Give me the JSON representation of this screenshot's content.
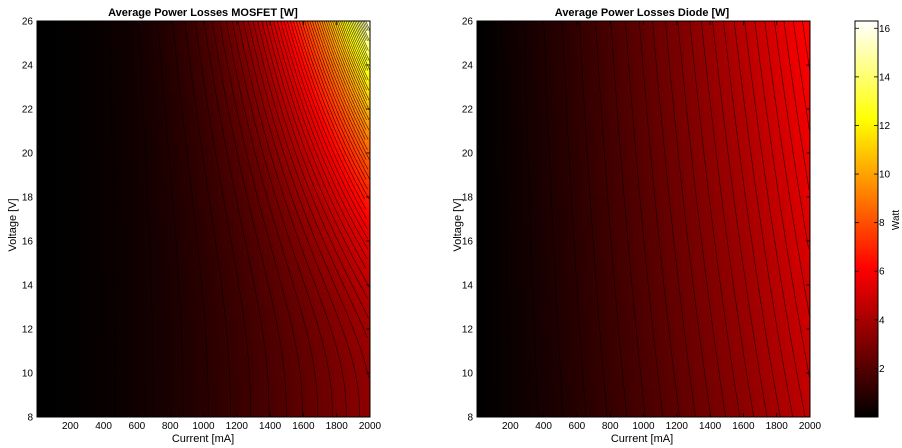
{
  "chart_data": [
    {
      "type": "heatmap",
      "title": "Average Power Losses MOSFET [W]",
      "xlabel": "Current [mA]",
      "ylabel": "Voltage [V]",
      "xlim": [
        0,
        2000
      ],
      "ylim": [
        8,
        26
      ],
      "x_ticks": [
        "200",
        "400",
        "600",
        "800",
        "1000",
        "1200",
        "1400",
        "1600",
        "1800",
        "2000"
      ],
      "y_ticks": [
        "8",
        "10",
        "12",
        "14",
        "16",
        "18",
        "20",
        "22",
        "24",
        "26"
      ],
      "z_range": [
        0,
        16.3
      ],
      "contour_lines": "black",
      "samples": [
        {
          "current_mA": 1000,
          "voltage_V": 8,
          "power_W": 1.0
        },
        {
          "current_mA": 400,
          "voltage_V": 26,
          "power_W": 1.0
        },
        {
          "current_mA": 2000,
          "voltage_V": 8,
          "power_W": 3.5
        },
        {
          "current_mA": 2000,
          "voltage_V": 20,
          "power_W": 9.5
        },
        {
          "current_mA": 2000,
          "voltage_V": 26,
          "power_W": 16.0
        }
      ]
    },
    {
      "type": "heatmap",
      "title": "Average Power Losses Diode [W]",
      "xlabel": "Current [mA]",
      "ylabel": "Voltage [V]",
      "xlim": [
        0,
        2000
      ],
      "ylim": [
        8,
        26
      ],
      "x_ticks": [
        "200",
        "400",
        "600",
        "800",
        "1000",
        "1200",
        "1400",
        "1600",
        "1800",
        "2000"
      ],
      "y_ticks": [
        "8",
        "10",
        "12",
        "14",
        "16",
        "18",
        "20",
        "22",
        "24",
        "26"
      ],
      "z_range": [
        0,
        6.4
      ],
      "contour_lines": "black",
      "samples": [
        {
          "current_mA": 200,
          "voltage_V": 8,
          "power_W": 0.5
        },
        {
          "current_mA": 1000,
          "voltage_V": 8,
          "power_W": 2.4
        },
        {
          "current_mA": 2000,
          "voltage_V": 8,
          "power_W": 4.6
        },
        {
          "current_mA": 2000,
          "voltage_V": 26,
          "power_W": 6.2
        }
      ]
    }
  ],
  "colorbar": {
    "label": "Watt",
    "ticks": [
      "2",
      "4",
      "6",
      "8",
      "10",
      "12",
      "14",
      "16"
    ],
    "range": [
      0,
      16.3
    ],
    "colormap": "hot"
  }
}
